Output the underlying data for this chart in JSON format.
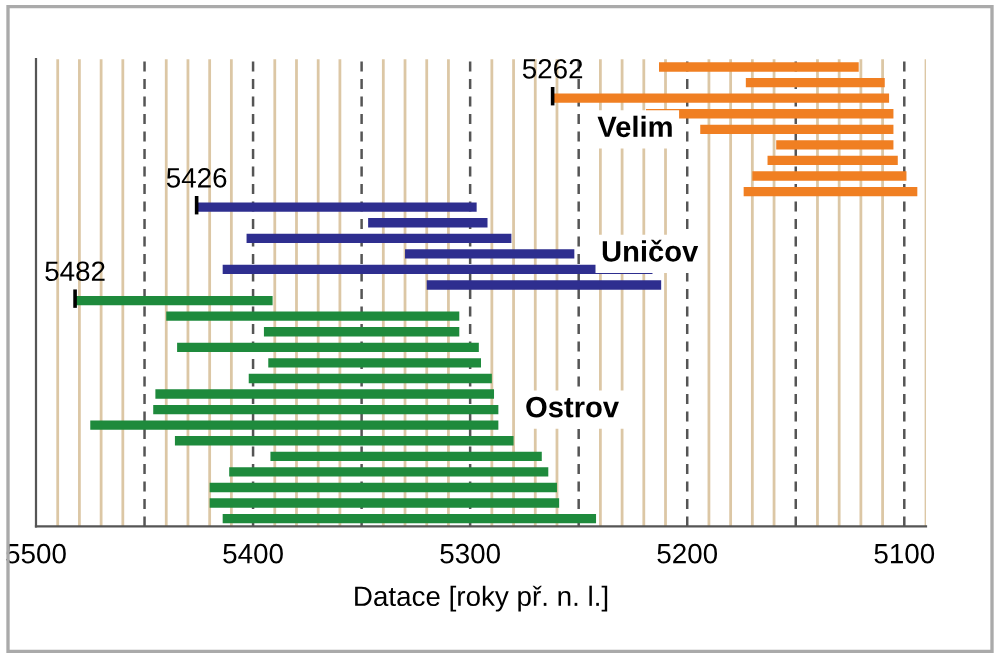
{
  "chart_data": {
    "type": "bar",
    "orientation": "horizontal",
    "xlabel": "Datace [roky př. n. l.]",
    "categories": [
      null,
      null,
      null,
      null,
      null,
      null,
      null,
      null,
      null,
      null,
      null,
      null,
      null,
      null,
      null,
      null,
      null,
      null,
      null,
      null,
      null,
      null,
      null,
      null,
      null,
      null,
      null,
      null,
      null,
      null
    ],
    "series": [
      {
        "name": "Velim",
        "color": "#f07f22",
        "values": [
          92,
          64,
          155,
          114,
          89,
          54,
          60,
          71,
          80,
          null,
          null,
          null,
          null,
          null,
          null,
          null,
          null,
          null,
          null,
          null,
          null,
          null,
          null,
          null,
          null,
          null,
          null,
          null,
          null,
          null
        ],
        "base": [
          5121,
          5109,
          5107,
          5105,
          5105,
          5105,
          5103,
          5099,
          5094,
          null,
          null,
          null,
          null,
          null,
          null,
          null,
          null,
          null,
          null,
          null,
          null,
          null,
          null,
          null,
          null,
          null,
          null,
          null,
          null,
          null
        ]
      },
      {
        "name": "Uničov",
        "color": "#2e2e8f",
        "values": [
          null,
          null,
          null,
          null,
          null,
          null,
          null,
          null,
          null,
          129,
          55,
          122,
          78,
          198,
          108,
          null,
          null,
          null,
          null,
          null,
          null,
          null,
          null,
          null,
          null,
          null,
          null,
          null,
          null,
          null
        ],
        "base": [
          null,
          null,
          null,
          null,
          null,
          null,
          null,
          null,
          null,
          5297,
          5292,
          5281,
          5252,
          5216,
          5212,
          null,
          null,
          null,
          null,
          null,
          null,
          null,
          null,
          null,
          null,
          null,
          null,
          null,
          null,
          null
        ]
      },
      {
        "name": "Ostrov",
        "color": "#1e8a3c",
        "values": [
          null,
          null,
          null,
          null,
          null,
          null,
          null,
          null,
          null,
          null,
          null,
          null,
          null,
          null,
          null,
          91,
          135,
          90,
          139,
          98,
          112,
          156,
          159,
          188,
          156,
          125,
          147,
          160,
          161,
          172
        ],
        "base": [
          null,
          null,
          null,
          null,
          null,
          null,
          null,
          null,
          null,
          null,
          null,
          null,
          null,
          null,
          null,
          5391,
          5305,
          5305,
          5296,
          5295,
          5290,
          5289,
          5287,
          5287,
          5280,
          5267,
          5264,
          5260,
          5259,
          5242
        ]
      }
    ],
    "xlim": [
      5500,
      5090
    ],
    "xticks": [
      5500,
      {
        "value": 5490,
        "label": null
      },
      {
        "value": 5480,
        "label": null
      },
      {
        "value": 5470,
        "label": null
      },
      {
        "value": 5460,
        "label": null
      },
      {
        "value": 5450,
        "label": null
      },
      {
        "value": 5440,
        "label": null
      },
      {
        "value": 5430,
        "label": null
      },
      {
        "value": 5420,
        "label": null
      },
      {
        "value": 5410,
        "label": null
      },
      5400,
      {
        "value": 5390,
        "label": null
      },
      {
        "value": 5380,
        "label": null
      },
      {
        "value": 5370,
        "label": null
      },
      {
        "value": 5360,
        "label": null
      },
      {
        "value": 5350,
        "label": null
      },
      {
        "value": 5340,
        "label": null
      },
      {
        "value": 5330,
        "label": null
      },
      {
        "value": 5320,
        "label": null
      },
      {
        "value": 5310,
        "label": null
      },
      5300,
      {
        "value": 5290,
        "label": null
      },
      {
        "value": 5280,
        "label": null
      },
      {
        "value": 5270,
        "label": null
      },
      {
        "value": 5260,
        "label": null
      },
      {
        "value": 5250,
        "label": null
      },
      {
        "value": 5240,
        "label": null
      },
      {
        "value": 5230,
        "label": null
      },
      {
        "value": 5220,
        "label": null
      },
      {
        "value": 5210,
        "label": null
      },
      5200,
      {
        "value": 5190,
        "label": null
      },
      {
        "value": 5180,
        "label": null
      },
      {
        "value": 5170,
        "label": null
      },
      {
        "value": 5160,
        "label": null
      },
      {
        "value": 5150,
        "label": null
      },
      {
        "value": 5140,
        "label": null
      },
      {
        "value": 5130,
        "label": null
      },
      {
        "value": 5120,
        "label": null
      },
      {
        "value": 5110,
        "label": null
      },
      5100,
      {
        "value": 5090,
        "label": null
      }
    ],
    "grid": "x",
    "annotations": [
      "5262",
      "5426",
      "5482"
    ]
  }
}
